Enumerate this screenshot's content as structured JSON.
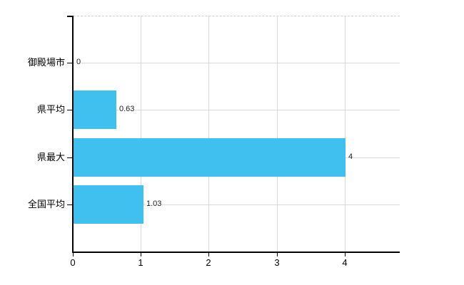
{
  "chart_data": {
    "type": "bar",
    "orientation": "horizontal",
    "categories": [
      "御殿場市",
      "県平均",
      "県最大",
      "全国平均"
    ],
    "values": [
      0,
      0.63,
      4,
      1.03
    ],
    "value_labels": [
      "0",
      "0.63",
      "4",
      "1.03"
    ],
    "x_ticks": [
      0,
      1,
      2,
      3,
      4
    ],
    "x_tick_labels": [
      "0",
      "1",
      "2",
      "3",
      "4"
    ],
    "xlim": [
      0,
      4.8
    ],
    "grid": true,
    "legend_position": "none",
    "colors": {
      "bar": "#3fc0ee",
      "gridline": "#d9d9d9",
      "plot_top_border": "#cfcccc",
      "axis": "#000000",
      "category_text": "#000000",
      "tick_text": "#000000",
      "value_text": "#1a1a1a",
      "background": "#ffffff"
    }
  }
}
